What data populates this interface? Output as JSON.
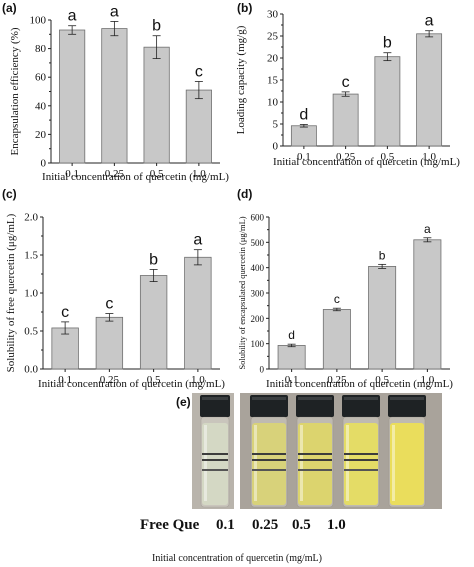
{
  "chart_data": [
    {
      "id": "a",
      "panel_label": "(a)",
      "type": "bar",
      "categories": [
        "0.1",
        "0.25",
        "0.5",
        "1.0"
      ],
      "values": [
        93,
        94,
        81,
        51
      ],
      "errors": [
        3,
        5,
        8,
        6
      ],
      "letters": [
        "a",
        "a",
        "b",
        "c"
      ],
      "ylabel": "Encapsulation efficiency (%)",
      "xlabel": "Initial concentration of quercetin (mg/mL)",
      "ylim": [
        0,
        100
      ],
      "yticks": [
        "0",
        "20",
        "40",
        "60",
        "80",
        "100"
      ]
    },
    {
      "id": "b",
      "panel_label": "(b)",
      "type": "bar",
      "categories": [
        "0.1",
        "0.25",
        "0.5",
        "1.0"
      ],
      "values": [
        4.6,
        11.8,
        20.3,
        25.5
      ],
      "errors": [
        0.3,
        0.5,
        0.9,
        0.7
      ],
      "letters": [
        "d",
        "c",
        "b",
        "a"
      ],
      "ylabel": "Loading capacity (mg/g)",
      "xlabel": "Initial concentration of quercetin (mg/mL)",
      "ylim": [
        0,
        30
      ],
      "yticks": [
        "0",
        "5",
        "10",
        "15",
        "20",
        "25",
        "30"
      ]
    },
    {
      "id": "c",
      "panel_label": "(c)",
      "type": "bar",
      "categories": [
        "0.1",
        "0.25",
        "0.5",
        "1.0"
      ],
      "values": [
        0.54,
        0.68,
        1.23,
        1.47
      ],
      "errors": [
        0.08,
        0.05,
        0.08,
        0.1
      ],
      "letters": [
        "c",
        "c",
        "b",
        "a"
      ],
      "ylabel": "Solubility of free quercetin (μg/mL)",
      "xlabel": "Initial concentration of quercetin (mg/mL)",
      "ylim": [
        0,
        2.0
      ],
      "yticks": [
        "0.0",
        "0.5",
        "1.0",
        "1.5",
        "2.0"
      ]
    },
    {
      "id": "d",
      "panel_label": "(d)",
      "type": "bar",
      "categories": [
        "0.1",
        "0.25",
        "0.5",
        "1.0"
      ],
      "values": [
        93,
        235,
        405,
        510
      ],
      "errors": [
        5,
        5,
        8,
        8
      ],
      "letters": [
        "d",
        "c",
        "b",
        "a"
      ],
      "ylabel": "Solubility of encapsulated quercetin (μg/mL)",
      "xlabel": "Initial concentration of quercetin (mg/mL)",
      "ylim": [
        0,
        600
      ],
      "yticks": [
        "0",
        "100",
        "200",
        "300",
        "400",
        "500",
        "600"
      ]
    }
  ],
  "photo": {
    "panel_label": "(e)",
    "vial_labels": [
      "Free Que",
      "0.1",
      "0.25",
      "0.5",
      "1.0"
    ],
    "liquid_colors": [
      "#d4d8c4",
      "#d8d27a",
      "#dcd46e",
      "#e4dc66",
      "#eadd5c"
    ],
    "cap_color": "#1e2224",
    "background_color": "#a8a29a",
    "caption": "Initial  concentration of quercetin (mg/mL)"
  }
}
